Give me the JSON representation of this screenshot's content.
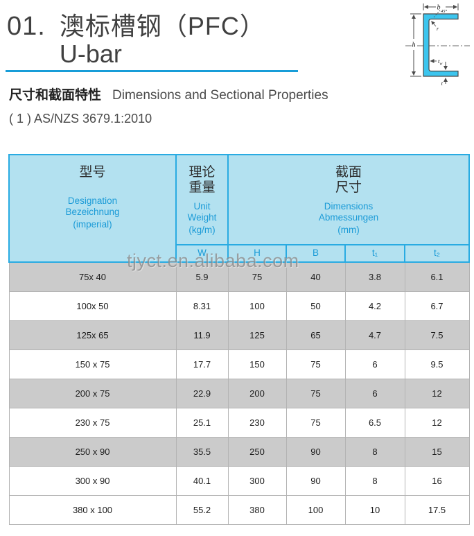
{
  "page": {
    "title_number": "01.",
    "title_cn": "澳标槽钢（PFC）",
    "title_en": "U-bar",
    "subtitle_cn": "尺寸和截面特性",
    "subtitle_en": "Dimensions and Sectional Properties",
    "standard": "( 1 ) AS/NZS 3679.1:2010",
    "watermark": "tjyct.en.alibaba.com"
  },
  "diagram": {
    "labels": {
      "b": "b",
      "h": "h",
      "angle": "45°",
      "r": "r",
      "tw_t": "t",
      "tw_w": "w",
      "t": "t"
    }
  },
  "table": {
    "header": {
      "designation": {
        "cn": "型号",
        "en1": "Designation",
        "en2": "Bezeichnung",
        "en3": "(imperial)"
      },
      "unit_weight": {
        "cn1": "理论",
        "cn2": "重量",
        "en1": "Unit",
        "en2": "Weight",
        "en3": "(kg/m)"
      },
      "dimensions": {
        "cn1": "截面",
        "cn2": "尺寸",
        "en1": "Dimensions",
        "en2": "Abmessungen",
        "en3": "(mm)"
      },
      "sub_columns": [
        "W",
        "H",
        "B",
        "t₁",
        "t₂"
      ]
    },
    "rows": [
      {
        "designation": "75x 40",
        "w": "5.9",
        "h": "75",
        "b": "40",
        "t1": "3.8",
        "t2": "6.1",
        "shade": true
      },
      {
        "designation": "100x 50",
        "w": "8.31",
        "h": "100",
        "b": "50",
        "t1": "4.2",
        "t2": "6.7",
        "shade": false
      },
      {
        "designation": "125x 65",
        "w": "11.9",
        "h": "125",
        "b": "65",
        "t1": "4.7",
        "t2": "7.5",
        "shade": true
      },
      {
        "designation": "150 x 75",
        "w": "17.7",
        "h": "150",
        "b": "75",
        "t1": "6",
        "t2": "9.5",
        "shade": false
      },
      {
        "designation": "200 x 75",
        "w": "22.9",
        "h": "200",
        "b": "75",
        "t1": "6",
        "t2": "12",
        "shade": true
      },
      {
        "designation": "230 x 75",
        "w": "25.1",
        "h": "230",
        "b": "75",
        "t1": "6.5",
        "t2": "12",
        "shade": false
      },
      {
        "designation": "250 x 90",
        "w": "35.5",
        "h": "250",
        "b": "90",
        "t1": "8",
        "t2": "15",
        "shade": true
      },
      {
        "designation": "300 x 90",
        "w": "40.1",
        "h": "300",
        "b": "90",
        "t1": "8",
        "t2": "16",
        "shade": false
      },
      {
        "designation": "380 x 100",
        "w": "55.2",
        "h": "380",
        "b": "100",
        "t1": "10",
        "t2": "17.5",
        "shade": false
      }
    ]
  },
  "colors": {
    "accent_blue": "#189dd8",
    "header_bg": "#b3e1f0",
    "header_border": "#29abe2",
    "header_blue_text": "#1b9bd7",
    "row_shaded": "#cbcbcb",
    "body_border": "#b3b3b3",
    "watermark_gray": "#8f8f8f",
    "diagram_fill": "#3cc5ee"
  }
}
